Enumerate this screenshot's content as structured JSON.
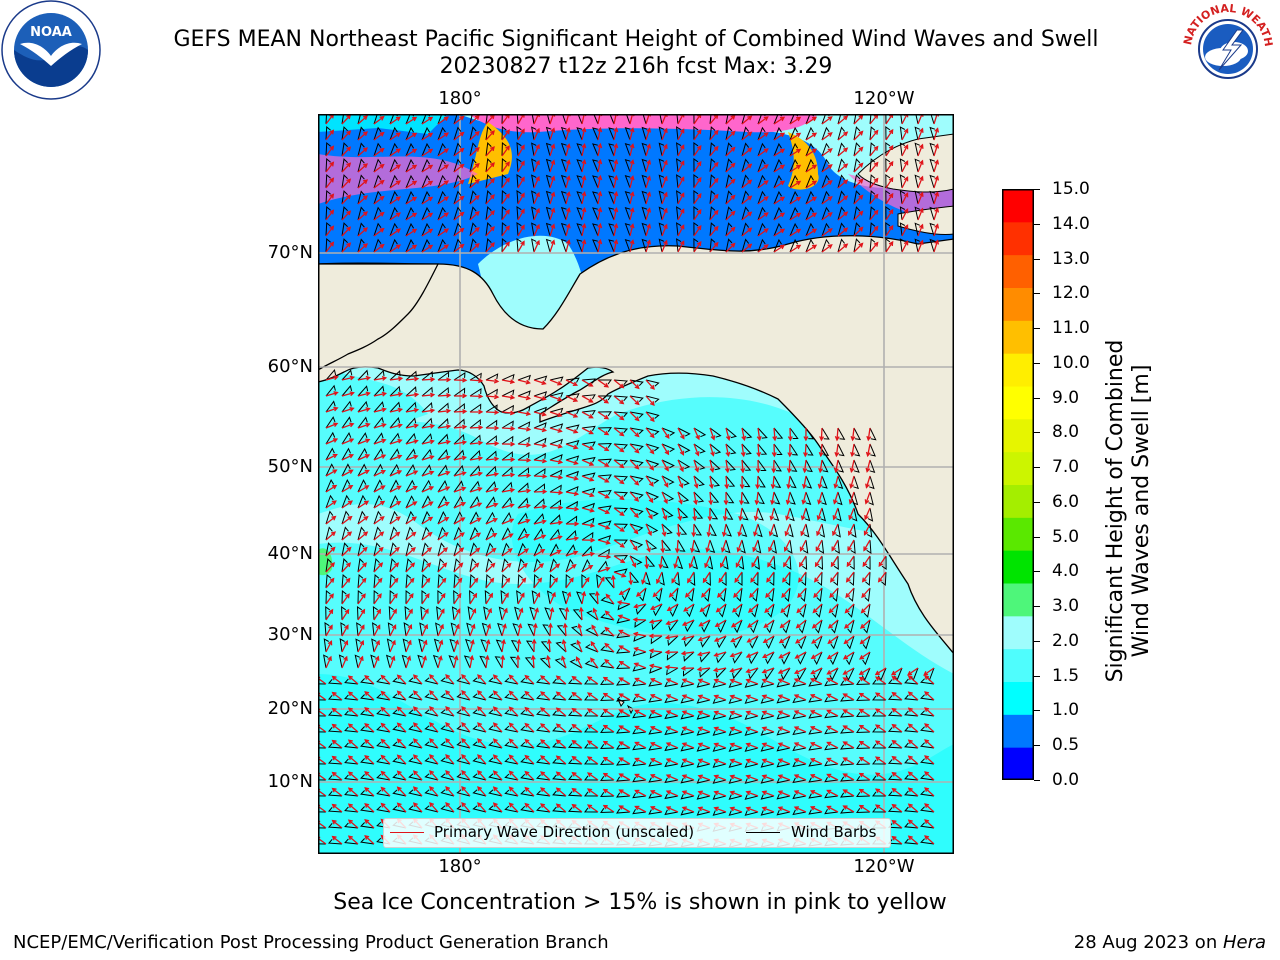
{
  "header": {
    "title_line1": "GEFS MEAN Northeast Pacific Significant Height of Combined Wind Waves and Swell",
    "title_line2": "20230827 t12z 216h fcst   Max: 3.29"
  },
  "logos": {
    "left": {
      "icon": "noaa-logo",
      "text": "NOAA",
      "ring_text": "NATIONAL OCEANIC AND ATMOSPHERIC ADMINISTRATION · U.S. DEPARTMENT OF COMMERCE"
    },
    "right": {
      "icon": "nws-logo",
      "ring_text": "NATIONAL WEATHER SERVICE"
    }
  },
  "map": {
    "lon_labels_top": [
      "180°",
      "120°W"
    ],
    "lon_labels_bottom": [
      "180°",
      "120°W"
    ],
    "lat_labels": [
      "70°N",
      "60°N",
      "50°N",
      "40°N",
      "30°N",
      "20°N",
      "10°N"
    ],
    "land_color": "#efecdc",
    "ocean_base_color": "#9ffdfd",
    "gridline_color": "#b0b0b0",
    "wave_arrow_color": "#e0141a",
    "barb_color": "#000000"
  },
  "legend": {
    "wave_label": "Primary Wave Direction (unscaled)",
    "barb_label": "Wind Barbs"
  },
  "colorbar": {
    "label_line1": "Significant Height of Combined",
    "label_line2": "Wind Waves and Swell [m]",
    "ticks": [
      "15.0",
      "14.0",
      "13.0",
      "12.0",
      "11.0",
      "10.0",
      "9.0",
      "8.0",
      "7.0",
      "6.0",
      "5.0",
      "4.0",
      "3.0",
      "2.0",
      "1.5",
      "1.0",
      "0.5",
      "0.0"
    ],
    "colors": [
      "#0000ff",
      "#0078ff",
      "#00ffff",
      "#4ffdfd",
      "#9ffdfd",
      "#4ef67a",
      "#00e400",
      "#5ae800",
      "#a4ee00",
      "#ccf500",
      "#e6f500",
      "#ffff00",
      "#ffee00",
      "#ffbf00",
      "#ff8c00",
      "#ff6000",
      "#ff3000",
      "#ff0000"
    ]
  },
  "footer": {
    "note": "Sea Ice Concentration > 15% is shown in pink to yellow",
    "credit": "NCEP/EMC/Verification Post Processing Product Generation Branch",
    "date": "28 Aug 2023 on ",
    "host": "Hera"
  }
}
